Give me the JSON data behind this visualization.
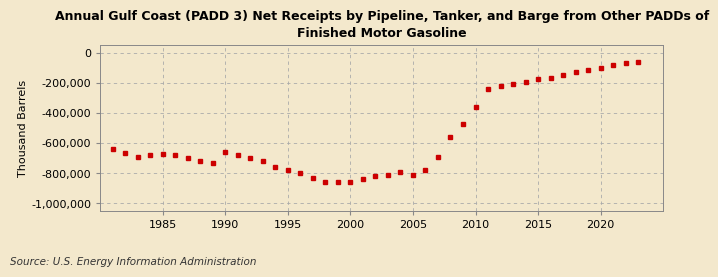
{
  "title": "Annual Gulf Coast (PADD 3) Net Receipts by Pipeline, Tanker, and Barge from Other PADDs of\nFinished Motor Gasoline",
  "ylabel": "Thousand Barrels",
  "source": "Source: U.S. Energy Information Administration",
  "background_color": "#f3e8cc",
  "plot_bg_color": "#f3e8cc",
  "marker_color": "#cc0000",
  "years": [
    1981,
    1982,
    1983,
    1984,
    1985,
    1986,
    1987,
    1988,
    1989,
    1990,
    1991,
    1992,
    1993,
    1994,
    1995,
    1996,
    1997,
    1998,
    1999,
    2000,
    2001,
    2002,
    2003,
    2004,
    2005,
    2006,
    2007,
    2008,
    2009,
    2010,
    2011,
    2012,
    2013,
    2014,
    2015,
    2016,
    2017,
    2018,
    2019,
    2020,
    2021,
    2022,
    2023
  ],
  "values": [
    -640000,
    -665000,
    -690000,
    -680000,
    -670000,
    -680000,
    -700000,
    -720000,
    -730000,
    -660000,
    -680000,
    -700000,
    -720000,
    -760000,
    -780000,
    -800000,
    -830000,
    -860000,
    -860000,
    -855000,
    -840000,
    -820000,
    -810000,
    -790000,
    -810000,
    -780000,
    -690000,
    -560000,
    -470000,
    -360000,
    -240000,
    -220000,
    -210000,
    -195000,
    -175000,
    -170000,
    -150000,
    -130000,
    -115000,
    -100000,
    -85000,
    -70000,
    -60000
  ],
  "ylim": [
    -1050000,
    50000
  ],
  "xlim": [
    1980,
    2025
  ],
  "yticks": [
    0,
    -200000,
    -400000,
    -600000,
    -800000,
    -1000000
  ],
  "xticks": [
    1985,
    1990,
    1995,
    2000,
    2005,
    2010,
    2015,
    2020
  ],
  "title_fontsize": 9,
  "axis_fontsize": 8,
  "source_fontsize": 7.5
}
